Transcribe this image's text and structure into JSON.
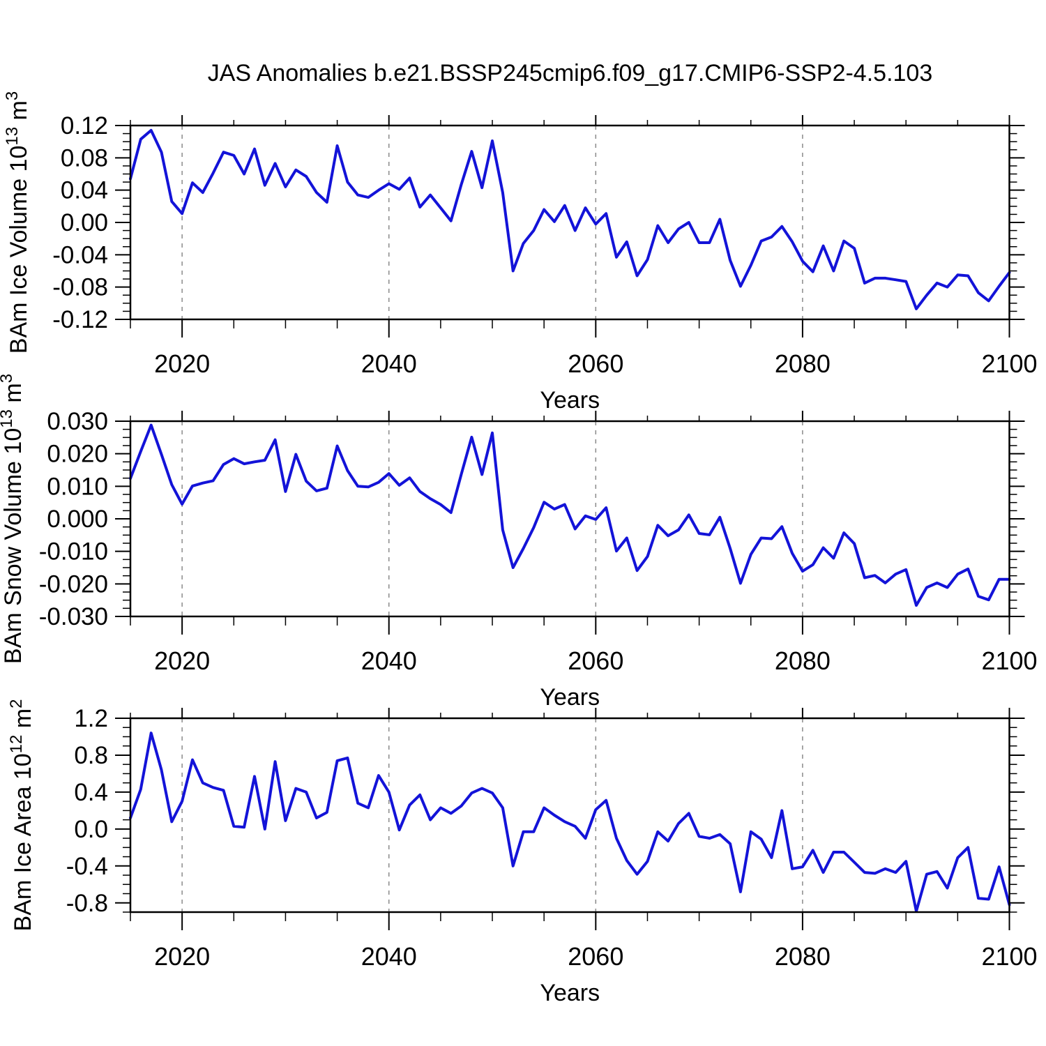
{
  "title": "JAS Anomalies b.e21.BSSP245cmip6.f09_g17.CMIP6-SSP2-4.5.103",
  "line_color": "#1313d8",
  "grid_color": "#8a8a8a",
  "frame_color": "#000000",
  "years_start": 2015,
  "years_end": 2100,
  "chart_data": [
    {
      "type": "line",
      "name": "ice-volume",
      "ylabel": "BAm Ice Volume 10^13 m^3",
      "ylabel_parts": [
        "BAm Ice Volume 10",
        "13",
        " m",
        "3"
      ],
      "xlabel": "Years",
      "xticks": [
        2020,
        2040,
        2060,
        2080,
        2100
      ],
      "xtick_labels": [
        "2020",
        "2040",
        "2060",
        "2080",
        "2100"
      ],
      "x_minor_step": 5,
      "xlim": [
        2015,
        2100
      ],
      "grid_at": [
        2020,
        2040,
        2060,
        2080
      ],
      "ylim": [
        -0.12,
        0.12
      ],
      "yticks": [
        0.12,
        0.08,
        0.04,
        0.0,
        -0.04,
        -0.08,
        -0.12
      ],
      "ytick_labels": [
        "0.12",
        "0.08",
        "0.04",
        "0.00",
        "-0.04",
        "-0.08",
        "-0.12"
      ],
      "y_minor_step": 0.01,
      "values": [
        0.054,
        0.103,
        0.114,
        0.087,
        0.026,
        0.011,
        0.049,
        0.037,
        0.061,
        0.087,
        0.083,
        0.06,
        0.091,
        0.046,
        0.073,
        0.044,
        0.065,
        0.057,
        0.037,
        0.025,
        0.095,
        0.05,
        0.034,
        0.031,
        0.04,
        0.048,
        0.041,
        0.055,
        0.019,
        0.034,
        0.018,
        0.002,
        0.047,
        0.088,
        0.043,
        0.101,
        0.037,
        -0.06,
        -0.026,
        -0.01,
        0.016,
        0.001,
        0.021,
        -0.01,
        0.018,
        -0.002,
        0.011,
        -0.043,
        -0.024,
        -0.066,
        -0.046,
        -0.004,
        -0.025,
        -0.008,
        0.0,
        -0.025,
        -0.025,
        0.004,
        -0.047,
        -0.079,
        -0.053,
        -0.023,
        -0.018,
        -0.005,
        -0.024,
        -0.048,
        -0.061,
        -0.029,
        -0.06,
        -0.023,
        -0.032,
        -0.075,
        -0.069,
        -0.069,
        -0.071,
        -0.073,
        -0.107,
        -0.09,
        -0.075,
        -0.08,
        -0.065,
        -0.066,
        -0.087,
        -0.097,
        -0.079,
        -0.062
      ]
    },
    {
      "type": "line",
      "name": "snow-volume",
      "ylabel": "BAm Snow Volume 10^13 m^3",
      "ylabel_parts": [
        "BAm Snow Volume 10",
        "13",
        " m",
        "3"
      ],
      "xlabel": "Years",
      "xticks": [
        2020,
        2040,
        2060,
        2080,
        2100
      ],
      "xtick_labels": [
        "2020",
        "2040",
        "2060",
        "2080",
        "2100"
      ],
      "x_minor_step": 5,
      "xlim": [
        2015,
        2100
      ],
      "grid_at": [
        2020,
        2040,
        2060,
        2080
      ],
      "ylim": [
        -0.03,
        0.03
      ],
      "yticks": [
        0.03,
        0.02,
        0.01,
        0.0,
        -0.01,
        -0.02,
        -0.03
      ],
      "ytick_labels": [
        "0.030",
        "0.020",
        "0.010",
        "0.000",
        "-0.010",
        "-0.020",
        "-0.030"
      ],
      "y_minor_step": 0.0025,
      "values": [
        0.0124,
        0.0207,
        0.0288,
        0.0198,
        0.0105,
        0.0045,
        0.0101,
        0.011,
        0.0117,
        0.0167,
        0.0185,
        0.0169,
        0.0175,
        0.018,
        0.0243,
        0.0084,
        0.0198,
        0.0116,
        0.0086,
        0.0094,
        0.0224,
        0.0148,
        0.01,
        0.0098,
        0.0112,
        0.0139,
        0.0103,
        0.0126,
        0.0084,
        0.0062,
        0.0044,
        0.0019,
        0.0137,
        0.0251,
        0.0136,
        0.0264,
        -0.0034,
        -0.015,
        -0.0091,
        -0.0027,
        0.0051,
        0.003,
        0.0044,
        -0.0031,
        0.0009,
        -0.0002,
        0.0034,
        -0.0099,
        -0.0059,
        -0.0159,
        -0.0116,
        -0.002,
        -0.0052,
        -0.0034,
        0.0012,
        -0.0045,
        -0.0049,
        0.0005,
        -0.0091,
        -0.0198,
        -0.0109,
        -0.0059,
        -0.0061,
        -0.0024,
        -0.0106,
        -0.0161,
        -0.0141,
        -0.0089,
        -0.0121,
        -0.0043,
        -0.0076,
        -0.0181,
        -0.0174,
        -0.0197,
        -0.017,
        -0.0156,
        -0.0266,
        -0.0211,
        -0.0197,
        -0.0211,
        -0.017,
        -0.0154,
        -0.0238,
        -0.0249,
        -0.0186,
        -0.0186
      ]
    },
    {
      "type": "line",
      "name": "ice-area",
      "ylabel": "BAm Ice Area 10^12 m^2",
      "ylabel_parts": [
        "BAm Ice Area 10",
        "12",
        " m",
        "2"
      ],
      "xlabel": "Years",
      "xticks": [
        2020,
        2040,
        2060,
        2080,
        2100
      ],
      "xtick_labels": [
        "2020",
        "2040",
        "2060",
        "2080",
        "2100"
      ],
      "x_minor_step": 5,
      "xlim": [
        2015,
        2100
      ],
      "grid_at": [
        2020,
        2040,
        2060,
        2080
      ],
      "ylim": [
        -0.9,
        1.2
      ],
      "yticks": [
        1.2,
        0.8,
        0.4,
        0.0,
        -0.4,
        -0.8
      ],
      "ytick_labels": [
        "1.2",
        "0.8",
        "0.4",
        "0.0",
        "-0.4",
        "-0.8"
      ],
      "y_minor_step": 0.1,
      "values": [
        0.12,
        0.43,
        1.04,
        0.64,
        0.08,
        0.3,
        0.75,
        0.5,
        0.45,
        0.42,
        0.03,
        0.02,
        0.57,
        0.0,
        0.73,
        0.09,
        0.44,
        0.4,
        0.12,
        0.18,
        0.74,
        0.77,
        0.28,
        0.23,
        0.58,
        0.4,
        -0.01,
        0.26,
        0.37,
        0.1,
        0.23,
        0.17,
        0.25,
        0.39,
        0.44,
        0.39,
        0.23,
        -0.4,
        -0.03,
        -0.03,
        0.23,
        0.15,
        0.08,
        0.03,
        -0.1,
        0.21,
        0.31,
        -0.1,
        -0.34,
        -0.49,
        -0.35,
        -0.03,
        -0.13,
        0.06,
        0.17,
        -0.08,
        -0.1,
        -0.06,
        -0.16,
        -0.68,
        -0.03,
        -0.11,
        -0.31,
        0.2,
        -0.43,
        -0.41,
        -0.23,
        -0.47,
        -0.25,
        -0.25,
        -0.36,
        -0.47,
        -0.48,
        -0.43,
        -0.47,
        -0.35,
        -0.89,
        -0.49,
        -0.46,
        -0.64,
        -0.31,
        -0.2,
        -0.75,
        -0.76,
        -0.41,
        -0.82
      ]
    }
  ]
}
